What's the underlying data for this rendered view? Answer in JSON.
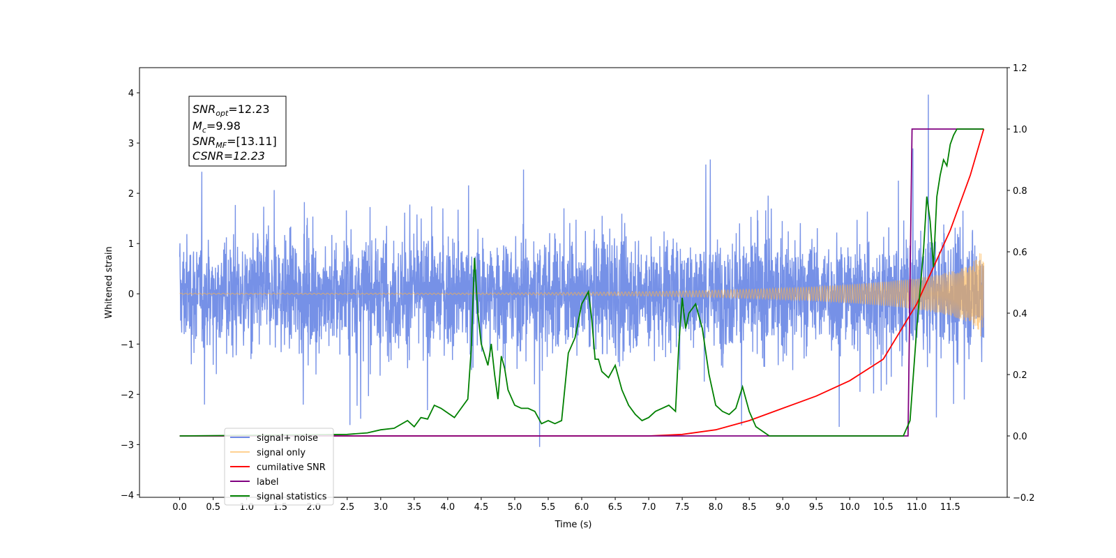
{
  "chart_data": {
    "type": "line",
    "title": "",
    "xlabel": "Time (s)",
    "ylabel": "Whitened strain",
    "xlim": [
      -0.6,
      12.35
    ],
    "ylim": [
      -4.05,
      4.5
    ],
    "y2lim": [
      -0.2,
      1.2
    ],
    "xticks": [
      "0.0",
      "0.5",
      "1.0",
      "1.5",
      "2.0",
      "2.5",
      "3.0",
      "3.5",
      "4.0",
      "4.5",
      "5.0",
      "5.5",
      "6.0",
      "6.5",
      "7.0",
      "7.5",
      "8.0",
      "8.5",
      "9.0",
      "9.5",
      "10.0",
      "10.5",
      "11.0",
      "11.5"
    ],
    "yticks": [
      "4",
      "3",
      "2",
      "1",
      "0",
      "−1",
      "−2",
      "−3",
      "−4"
    ],
    "y2ticks": [
      "1.2",
      "1.0",
      "0.8",
      "0.6",
      "0.4",
      "0.2",
      "0.0",
      "−0.2"
    ],
    "grid": false,
    "legend_position": "lower-left",
    "annotation": {
      "snr_opt": "=12.23",
      "mc": "=9.98",
      "snr_mf": "=[13.11]",
      "csnr": "CSNR=12.23",
      "snr_label": "SNR",
      "opt_sub": "opt",
      "m_label": "M",
      "c_sub": "c",
      "mf_sub": "MF"
    },
    "series": [
      {
        "name": "signal+ noise",
        "color": "#6f8be6",
        "axis": "left",
        "note_range": [
          -3.65,
          4.12
        ],
        "x_range": [
          0.0,
          12.0
        ]
      },
      {
        "name": "signal only",
        "color": "#ffb347",
        "axis": "left",
        "x_range": [
          0.0,
          12.0
        ],
        "envelope_end": 1.15
      },
      {
        "name": "cumilative SNR",
        "color": "#ff0000",
        "axis": "right",
        "x": [
          0.0,
          7.0,
          7.5,
          8.0,
          8.5,
          9.0,
          9.5,
          10.0,
          10.5,
          11.0,
          11.5,
          11.8,
          12.0
        ],
        "y": [
          0.0,
          0.0,
          0.005,
          0.02,
          0.05,
          0.09,
          0.13,
          0.18,
          0.25,
          0.43,
          0.67,
          0.85,
          1.0
        ]
      },
      {
        "name": "label",
        "color": "#800080",
        "axis": "right",
        "x": [
          0.0,
          10.87,
          10.93,
          12.0
        ],
        "y": [
          0.0,
          0.0,
          1.0,
          1.0
        ]
      },
      {
        "name": "signal statistics",
        "color": "#008000",
        "axis": "right",
        "x": [
          0.0,
          2.5,
          2.8,
          3.0,
          3.2,
          3.4,
          3.5,
          3.6,
          3.7,
          3.8,
          3.9,
          4.0,
          4.1,
          4.2,
          4.3,
          4.35,
          4.4,
          4.45,
          4.5,
          4.6,
          4.65,
          4.7,
          4.75,
          4.8,
          4.85,
          4.9,
          5.0,
          5.1,
          5.2,
          5.3,
          5.4,
          5.5,
          5.6,
          5.7,
          5.8,
          5.9,
          6.0,
          6.1,
          6.15,
          6.2,
          6.25,
          6.3,
          6.4,
          6.5,
          6.6,
          6.7,
          6.8,
          6.9,
          7.0,
          7.1,
          7.2,
          7.3,
          7.4,
          7.45,
          7.5,
          7.55,
          7.6,
          7.7,
          7.8,
          7.9,
          8.0,
          8.1,
          8.2,
          8.3,
          8.4,
          8.5,
          8.6,
          8.8,
          9.0,
          10.0,
          10.8,
          10.9,
          11.0,
          11.1,
          11.15,
          11.2,
          11.25,
          11.3,
          11.35,
          11.4,
          11.45,
          11.5,
          11.55,
          11.6,
          11.7,
          11.8,
          12.0
        ],
        "y": [
          0.0,
          0.005,
          0.01,
          0.02,
          0.025,
          0.05,
          0.03,
          0.06,
          0.055,
          0.1,
          0.09,
          0.075,
          0.06,
          0.09,
          0.12,
          0.28,
          0.58,
          0.4,
          0.3,
          0.23,
          0.3,
          0.2,
          0.12,
          0.26,
          0.22,
          0.15,
          0.1,
          0.09,
          0.09,
          0.08,
          0.04,
          0.05,
          0.04,
          0.05,
          0.27,
          0.32,
          0.43,
          0.47,
          0.38,
          0.25,
          0.25,
          0.21,
          0.19,
          0.23,
          0.15,
          0.1,
          0.07,
          0.05,
          0.06,
          0.08,
          0.09,
          0.1,
          0.08,
          0.3,
          0.45,
          0.35,
          0.4,
          0.43,
          0.35,
          0.2,
          0.1,
          0.08,
          0.07,
          0.09,
          0.16,
          0.08,
          0.03,
          0.0,
          0.0,
          0.0,
          0.0,
          0.05,
          0.35,
          0.6,
          0.78,
          0.7,
          0.55,
          0.78,
          0.85,
          0.9,
          0.88,
          0.95,
          0.98,
          1.0,
          1.0,
          1.0,
          1.0
        ]
      }
    ]
  }
}
